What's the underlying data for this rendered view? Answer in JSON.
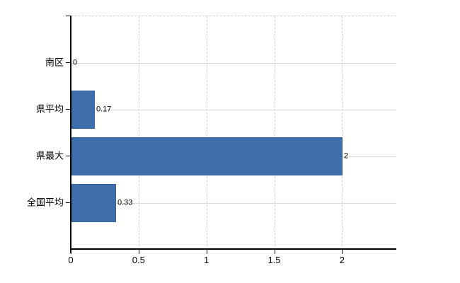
{
  "chart_data": {
    "type": "bar",
    "orientation": "horizontal",
    "title": "",
    "categories": [
      "南区",
      "県平均",
      "県最大",
      "全国平均"
    ],
    "values": [
      0,
      0.17,
      2,
      0.33
    ],
    "value_labels": [
      "0",
      "0.17",
      "2",
      "0.33"
    ],
    "xticks": [
      0,
      0.5,
      1,
      1.5,
      2
    ],
    "xtick_labels": [
      "0",
      "0.5",
      "1",
      "1.5",
      "2"
    ],
    "xlim": [
      0,
      2.4
    ],
    "bar_color": "#3e6fab",
    "bar_border_color": "#36619c",
    "axis_color": "#000000",
    "vgrid_color": "#d2d2d2",
    "hgrid_color": "#d9ded9",
    "grid": {
      "vertical": "dashed",
      "horizontal": "solid"
    },
    "legend": "none"
  }
}
